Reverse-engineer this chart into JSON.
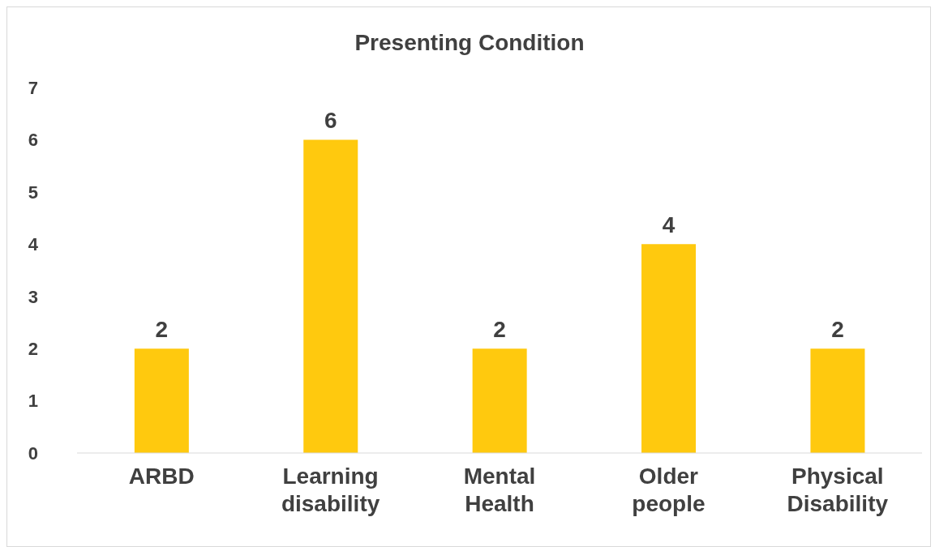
{
  "chart_data": {
    "type": "bar",
    "title": "Presenting Condition",
    "categories": [
      "ARBD",
      "Learning disability",
      "Mental Health",
      "Older people",
      "Physical Disability"
    ],
    "values": [
      2,
      6,
      2,
      4,
      2
    ],
    "color": "#ffc90e",
    "ylim": [
      0,
      7
    ],
    "yticks": [
      0,
      1,
      2,
      3,
      4,
      5,
      6,
      7
    ],
    "grid": false,
    "data_labels": true
  }
}
